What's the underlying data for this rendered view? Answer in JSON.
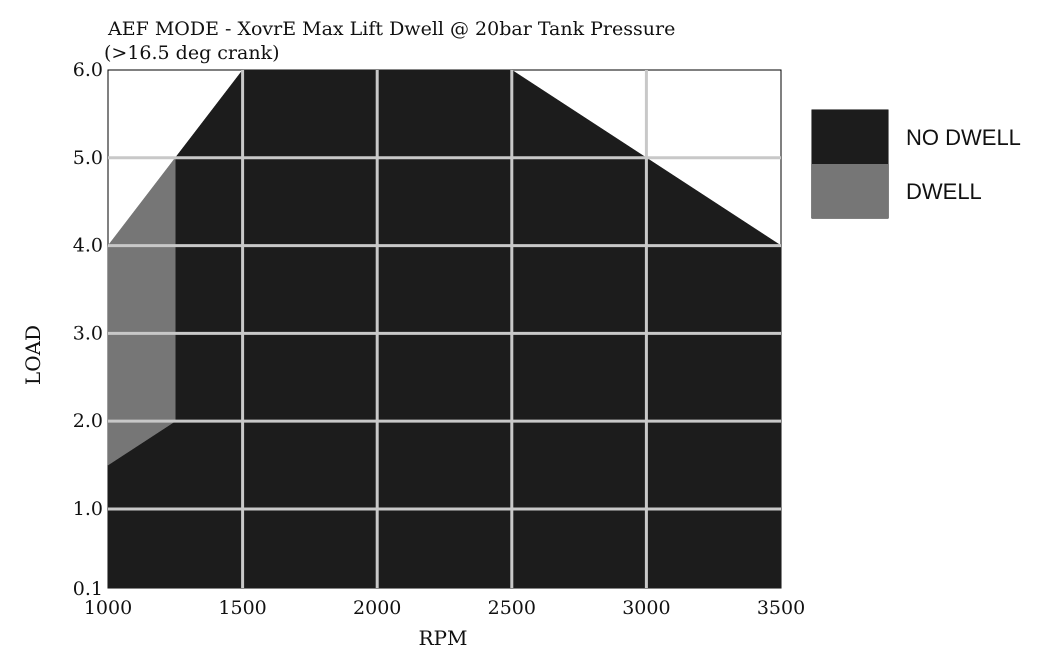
{
  "chart_data": {
    "type": "area",
    "title": "AEF MODE - XovrE Max Lift Dwell @ 20bar Tank Pressure",
    "subtitle": "(>16.5 deg crank)",
    "xlabel": "RPM",
    "ylabel": "LOAD",
    "xlim": [
      1000,
      3500
    ],
    "ylim": [
      0.1,
      6.0
    ],
    "x_ticks": [
      1000,
      1500,
      2000,
      2500,
      3000,
      3500
    ],
    "x_tick_labels": [
      "1000",
      "1500",
      "2000",
      "2500",
      "3000",
      "3500"
    ],
    "y_ticks": [
      0.1,
      1.0,
      2.0,
      3.0,
      4.0,
      5.0,
      6.0
    ],
    "y_tick_labels": [
      "0.1",
      "1.0",
      "2.0",
      "3.0",
      "4.0",
      "5.0",
      "6.0"
    ],
    "grid": true,
    "legend_position": "right",
    "series": [
      {
        "name": "NO DWELL",
        "color": "#1c1c1c",
        "region": [
          [
            1000,
            0.1
          ],
          [
            3500,
            0.1
          ],
          [
            3500,
            4.0
          ],
          [
            3000,
            5.0
          ],
          [
            2500,
            6.0
          ],
          [
            1500,
            6.0
          ],
          [
            1250,
            5.0
          ],
          [
            1250,
            2.0
          ],
          [
            1000,
            1.5
          ]
        ]
      },
      {
        "name": "DWELL",
        "color": "#767676",
        "region": [
          [
            1000,
            1.5
          ],
          [
            1250,
            2.0
          ],
          [
            1250,
            5.0
          ],
          [
            1000,
            4.0
          ]
        ]
      }
    ]
  }
}
